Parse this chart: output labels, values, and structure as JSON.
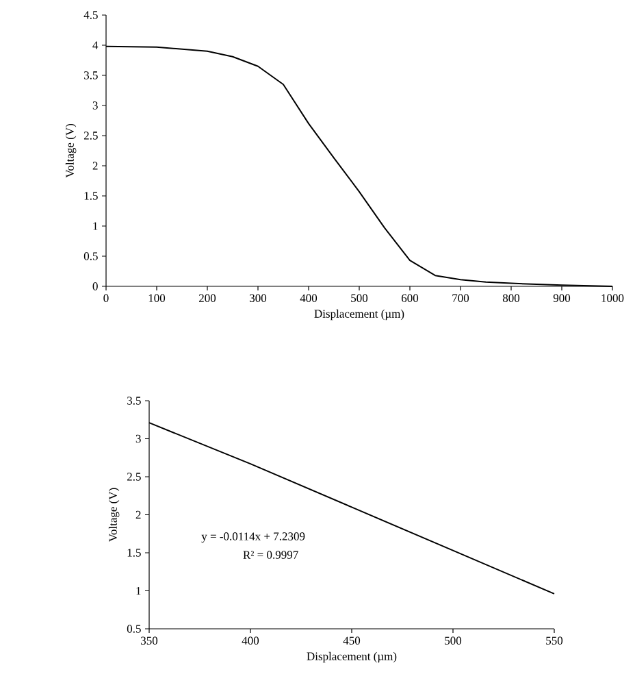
{
  "chart_data": [
    {
      "type": "line",
      "xlabel": "Displacement (µm)",
      "ylabel": "Voltage (V)",
      "x": [
        0,
        100,
        200,
        250,
        300,
        350,
        400,
        450,
        500,
        550,
        600,
        650,
        700,
        750,
        800,
        900,
        1000
      ],
      "values": [
        3.98,
        3.97,
        3.9,
        3.81,
        3.65,
        3.35,
        2.7,
        2.13,
        1.57,
        0.97,
        0.43,
        0.18,
        0.11,
        0.07,
        0.05,
        0.02,
        0.0
      ],
      "color": "#000000",
      "xlim": [
        0,
        1000
      ],
      "xticks": [
        0,
        100,
        200,
        300,
        400,
        500,
        600,
        700,
        800,
        900,
        1000
      ],
      "ylim": [
        0,
        4.5
      ],
      "yticks": [
        0,
        0.5,
        1,
        1.5,
        2,
        2.5,
        3,
        3.5,
        4,
        4.5
      ]
    },
    {
      "type": "line",
      "xlabel": "Displacement (µm)",
      "ylabel": "Voltage (V)",
      "x": [
        350,
        400,
        450,
        500,
        550
      ],
      "values": [
        3.21,
        2.67,
        2.1,
        1.53,
        0.96
      ],
      "color": "#000000",
      "xlim": [
        350,
        550
      ],
      "xticks": [
        350,
        400,
        450,
        500,
        550
      ],
      "ylim": [
        0.5,
        3.5
      ],
      "yticks": [
        0.5,
        1,
        1.5,
        2,
        2.5,
        3,
        3.5
      ],
      "annotations": [
        "y = -0.0114x + 7.2309",
        "R² = 0.9997"
      ]
    }
  ]
}
